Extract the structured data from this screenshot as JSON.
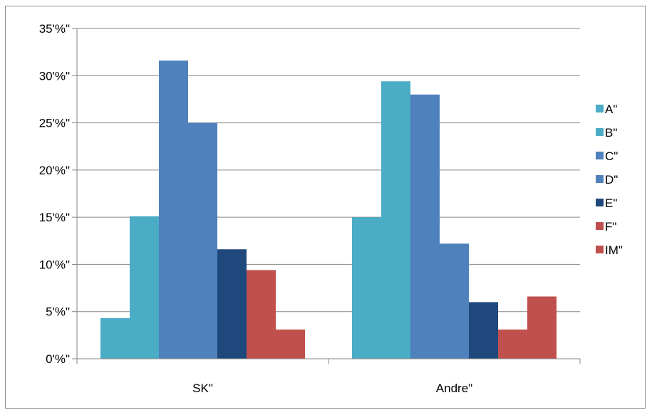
{
  "chart_data": {
    "type": "bar",
    "title": "",
    "xlabel": "",
    "ylabel": "",
    "categories": [
      "SK\"",
      "Andre\""
    ],
    "ylim": [
      0,
      35
    ],
    "yticks": [
      0,
      5,
      10,
      15,
      20,
      25,
      30,
      35
    ],
    "ytick_labels": [
      "0'%\"",
      "5'%\"",
      "10'%\"",
      "15'%\"",
      "20'%\"",
      "25'%\"",
      "30'%\"",
      "35'%\""
    ],
    "grid": true,
    "legend_position": "right",
    "series": [
      {
        "name": "A\"",
        "color": "#4BACC6",
        "values": [
          4.3,
          15.0
        ]
      },
      {
        "name": "B\"",
        "color": "#4BACC6",
        "values": [
          15.1,
          29.4
        ]
      },
      {
        "name": "C\"",
        "color": "#4F81BD",
        "values": [
          31.6,
          28.0
        ]
      },
      {
        "name": "D\"",
        "color": "#4F81BD",
        "values": [
          25.0,
          12.2
        ]
      },
      {
        "name": "E\"",
        "color": "#1F497D",
        "values": [
          11.6,
          6.0
        ]
      },
      {
        "name": "F\"",
        "color": "#C0504D",
        "values": [
          9.4,
          3.1
        ]
      },
      {
        "name": "IM\"",
        "color": "#C0504D",
        "values": [
          3.1,
          6.6
        ]
      }
    ]
  }
}
